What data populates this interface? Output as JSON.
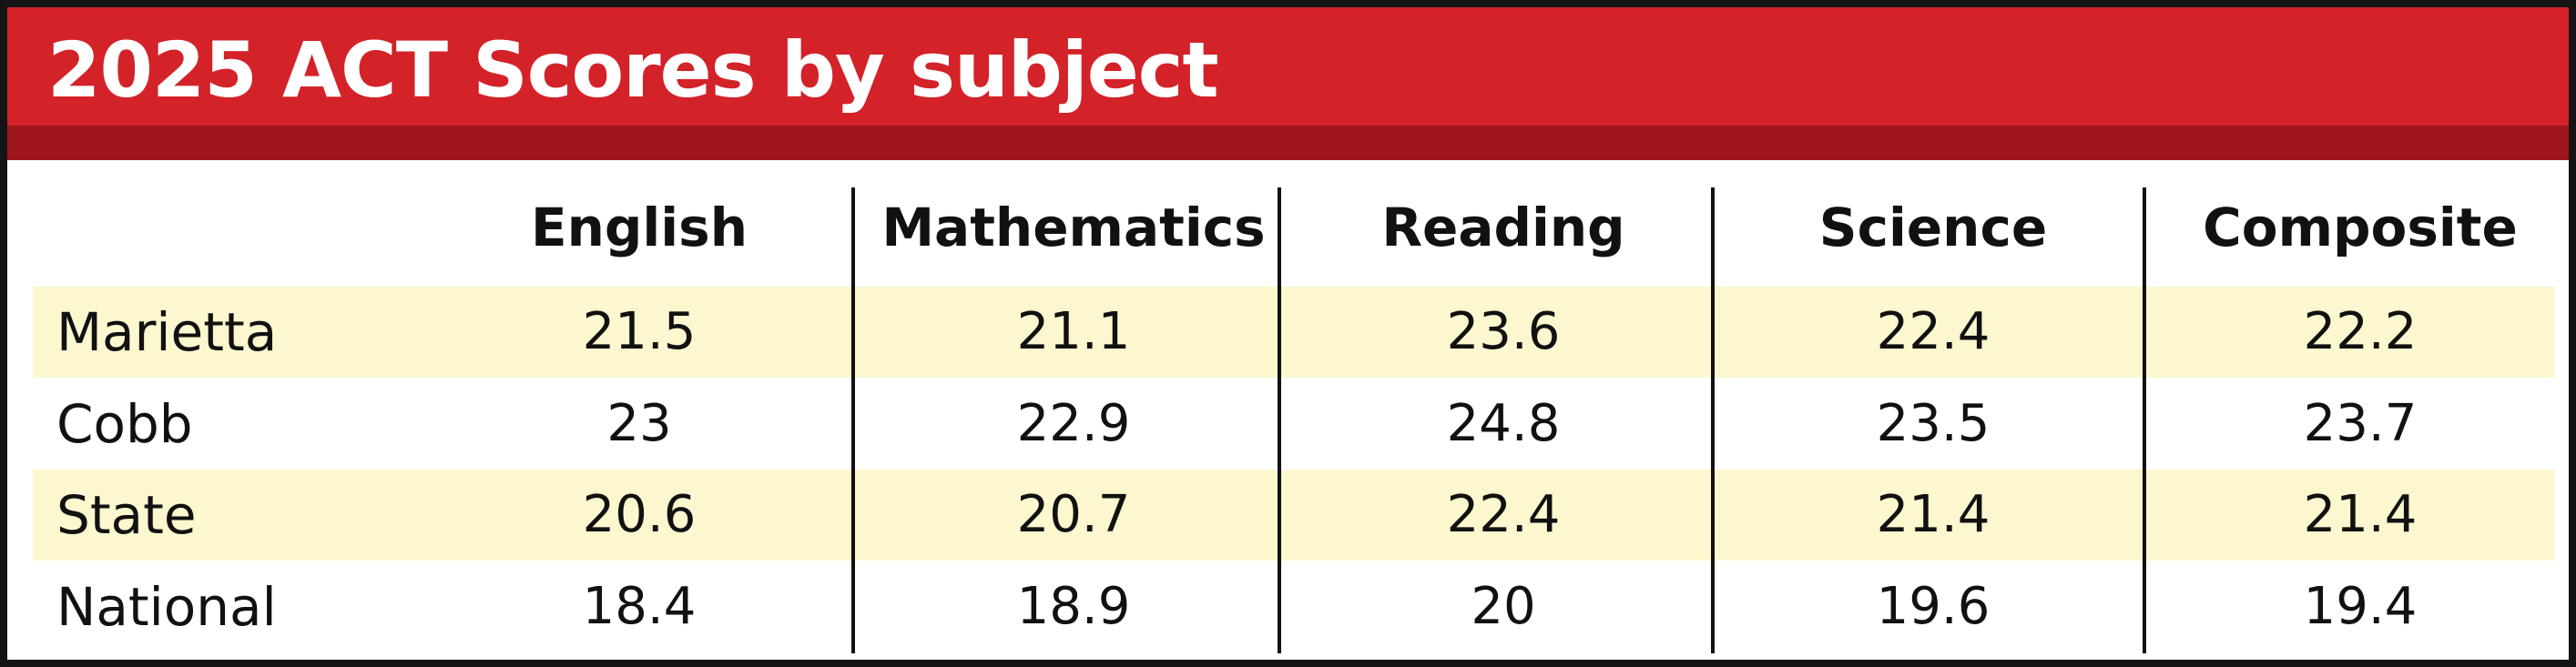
{
  "title": "2025 ACT Scores by subject",
  "colors": {
    "title_bar": "#d42229",
    "title_strip": "#9e171d",
    "row_band": "#fdf7cf",
    "border": "#141414"
  },
  "chart_data": {
    "type": "table",
    "title": "2025 ACT Scores by subject",
    "columns": [
      "English",
      "Mathematics",
      "Reading",
      "Science",
      "Composite"
    ],
    "rows": [
      {
        "label": "Marietta",
        "values": [
          "21.5",
          "21.1",
          "23.6",
          "22.4",
          "22.2"
        ]
      },
      {
        "label": "Cobb",
        "values": [
          "23",
          "22.9",
          "24.8",
          "23.5",
          "23.7"
        ]
      },
      {
        "label": "State",
        "values": [
          "20.6",
          "20.7",
          "22.4",
          "21.4",
          "21.4"
        ]
      },
      {
        "label": "National",
        "values": [
          "18.4",
          "18.9",
          "20",
          "19.6",
          "19.4"
        ]
      }
    ],
    "banded_rows": [
      0,
      2
    ]
  }
}
